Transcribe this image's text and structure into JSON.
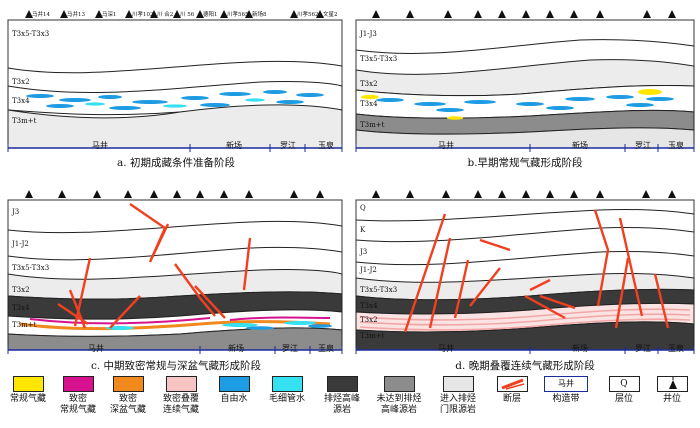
{
  "wells": [
    "马井14",
    "马井13",
    "马深1",
    "川孝102",
    "川 合2",
    "川 56",
    "德阳1",
    "川孝565",
    "新场8",
    "川孝562",
    "文星2"
  ],
  "panels": [
    {
      "caption": "a. 初期成藏条件准备阶段",
      "layers": [
        "T3x5-T3x3",
        "T3x2",
        "T3x4",
        "T3m+t"
      ],
      "places": [
        "马井",
        "新场",
        "罗江",
        "玉泉"
      ]
    },
    {
      "caption": "b.早期常规气藏形成阶段",
      "layers": [
        "J1-J3",
        "T3x5-T3x3",
        "T3x2",
        "T3x4",
        "T3m+t"
      ],
      "places": [
        "马井",
        "新场",
        "罗江",
        "玉泉"
      ]
    },
    {
      "caption": "c. 中期致密常规与深盆气藏形成阶段",
      "layers": [
        "J3",
        "J1-J2",
        "T3x5-T3x3",
        "T3x2",
        "T3x4",
        "T3m+t"
      ],
      "places": [
        "马井",
        "新场",
        "罗江",
        "玉泉"
      ]
    },
    {
      "caption": "d. 晚期叠覆连续气藏形成阶段",
      "layers": [
        "Q",
        "K",
        "J3",
        "J1-J2",
        "T3x5-T3x3",
        "T3x4",
        "T3x2",
        "T3m+t"
      ],
      "places": [
        "马井",
        "新场",
        "罗江",
        "玉泉"
      ]
    }
  ],
  "legend": [
    {
      "label": "常规气藏",
      "color": "#ffe600"
    },
    {
      "label": "致密\n常规气藏",
      "color": "#d6128e"
    },
    {
      "label": "致密\n深盆气藏",
      "color": "#f08a1e"
    },
    {
      "label": "致密叠覆\n连续气藏",
      "color": "#f7c4c4"
    },
    {
      "label": "自由水",
      "color": "#1d9be3"
    },
    {
      "label": "毛细管水",
      "color": "#35e0f0"
    },
    {
      "label": "排烃高峰\n源岩",
      "color": "#3a3a3a"
    },
    {
      "label": "未达到排烃\n高峰源岩",
      "color": "#8c8c8c"
    },
    {
      "label": "进入排烃\n门限源岩",
      "color": "#e6e6e6"
    },
    {
      "label": "断层",
      "color": "#f04020"
    },
    {
      "label": "构造带",
      "color": "#1a2b9a"
    },
    {
      "label": "层位",
      "color": "#ffffff"
    },
    {
      "label": "井位",
      "color": "#ffffff"
    }
  ],
  "legend_symbols": {
    "zone_name": "马井",
    "horizon": "Q"
  }
}
